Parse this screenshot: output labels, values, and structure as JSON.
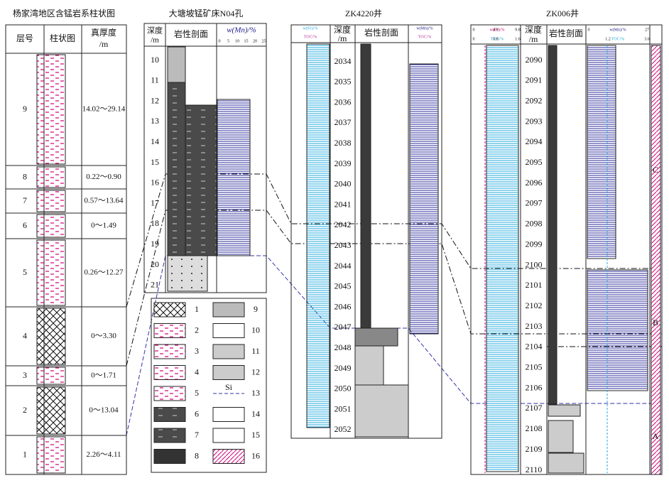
{
  "figure1": {
    "title": "杨家湾地区含锰岩系柱状图",
    "headers": [
      "层号",
      "柱状图"
    ],
    "thickness_header": [
      "真厚度",
      "/m"
    ],
    "layers": [
      {
        "id": "9",
        "thickness": "14.02～29.14"
      },
      {
        "id": "8",
        "thickness": "0.22～0.90"
      },
      {
        "id": "7",
        "thickness": "0.57～13.64"
      },
      {
        "id": "6",
        "thickness": "0～1.49"
      },
      {
        "id": "5",
        "thickness": "0.26～12.27"
      },
      {
        "id": "4",
        "thickness": "0～3.30"
      },
      {
        "id": "3",
        "thickness": "0～1.71"
      },
      {
        "id": "2",
        "thickness": "0～13.04"
      },
      {
        "id": "1",
        "thickness": "2.26～4.11"
      }
    ]
  },
  "figure2": {
    "title": "大塘坡锰矿床N04孔",
    "depth_header": [
      "深度",
      "/m"
    ],
    "lithology_header": "岩性剖面",
    "mn_header": "w(Mn)/%",
    "mn_ticks": [
      "0",
      "5",
      "10",
      "15",
      "20",
      "25"
    ],
    "depths": [
      10,
      11,
      12,
      13,
      14,
      15,
      16,
      17,
      18,
      19,
      20,
      21
    ]
  },
  "figure3": {
    "title": "ZK4220井",
    "depth_header": [
      "深度",
      "/m"
    ],
    "lithology_header": "岩性剖面",
    "fe_header": "w(Fe)/%",
    "toc_header": "TOC/%",
    "mn_header": "w(Mn)/%",
    "depths": [
      2034,
      2035,
      2036,
      2037,
      2038,
      2039,
      2040,
      2041,
      2042,
      2043,
      2044,
      2045,
      2046,
      2047,
      2048,
      2049,
      2050,
      2051,
      2052
    ]
  },
  "figure4": {
    "title": "ZK006井",
    "depth_header": [
      "深度",
      "/m"
    ],
    "lithology_header": "岩性剖面",
    "fe_header": "w(Fe)/%",
    "toc_header": "TOC/%",
    "mn_header": "w(Mn)/%",
    "fe_ticks": [
      "0",
      "4.9",
      "9.8"
    ],
    "toc_ticks": [
      "0",
      "0.8",
      "1.6"
    ],
    "mn_ticks": [
      "0",
      "27"
    ],
    "toc2_ticks": [
      "1.2",
      "3.6"
    ],
    "zones": [
      "C",
      "B",
      "A"
    ],
    "depths": [
      2090,
      2091,
      2092,
      2093,
      2094,
      2095,
      2096,
      2097,
      2098,
      2099,
      2100,
      2101,
      2102,
      2103,
      2104,
      2105,
      2106,
      2107,
      2108,
      2109,
      2110
    ]
  },
  "legend": {
    "items": [
      "1",
      "2",
      "3",
      "4",
      "5",
      "6",
      "7",
      "8",
      "9",
      "10",
      "11",
      "12",
      "13",
      "14",
      "15",
      "16"
    ],
    "si_label": "Si"
  }
}
